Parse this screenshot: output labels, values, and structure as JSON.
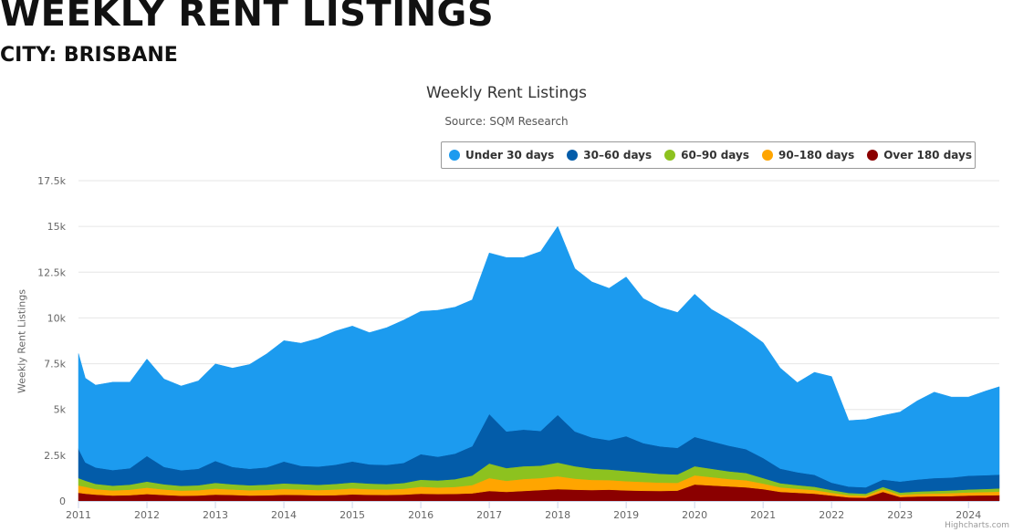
{
  "page": {
    "title": "WEEKLY RENT LISTINGS",
    "subtitle": "CITY: BRISBANE"
  },
  "credits": "Highcharts.com",
  "chart_data": {
    "type": "area",
    "stacked": true,
    "title": "Weekly Rent Listings",
    "subtitle": "Source: SQM Research",
    "ylabel": "Weekly Rent Listings",
    "xlabel": "",
    "xlim": [
      2011.0,
      2024.45
    ],
    "ylim": [
      0,
      17500
    ],
    "x_ticks": [
      "2011",
      "2012",
      "2013",
      "2014",
      "2015",
      "2016",
      "2017",
      "2018",
      "2019",
      "2020",
      "2021",
      "2022",
      "2023",
      "2024"
    ],
    "y_ticks": [
      "0",
      "2.5k",
      "5k",
      "7.5k",
      "10k",
      "12.5k",
      "15k",
      "17.5k"
    ],
    "grid": "horizontal",
    "legend_position": "top-right",
    "x": [
      2011.0,
      2011.1,
      2011.25,
      2011.5,
      2011.75,
      2012.0,
      2012.25,
      2012.5,
      2012.75,
      2013.0,
      2013.25,
      2013.5,
      2013.75,
      2014.0,
      2014.25,
      2014.5,
      2014.75,
      2015.0,
      2015.25,
      2015.5,
      2015.75,
      2016.0,
      2016.25,
      2016.5,
      2016.75,
      2017.0,
      2017.25,
      2017.5,
      2017.75,
      2018.0,
      2018.25,
      2018.5,
      2018.75,
      2019.0,
      2019.25,
      2019.5,
      2019.75,
      2020.0,
      2020.25,
      2020.5,
      2020.75,
      2021.0,
      2021.25,
      2021.5,
      2021.75,
      2022.0,
      2022.25,
      2022.5,
      2022.75,
      2023.0,
      2023.25,
      2023.5,
      2023.75,
      2024.0,
      2024.25,
      2024.45
    ],
    "series": [
      {
        "name": "Over 180 days",
        "color": "#8B0000",
        "values": [
          450,
          400,
          350,
          300,
          320,
          380,
          330,
          290,
          300,
          350,
          330,
          300,
          310,
          340,
          330,
          310,
          320,
          360,
          340,
          330,
          350,
          400,
          380,
          390,
          420,
          550,
          500,
          550,
          600,
          650,
          620,
          600,
          620,
          580,
          560,
          550,
          570,
          900,
          850,
          800,
          750,
          650,
          500,
          450,
          400,
          300,
          200,
          180,
          500,
          220,
          250,
          260,
          270,
          300,
          310,
          320
        ]
      },
      {
        "name": "90–180 days",
        "color": "#FFA500",
        "values": [
          400,
          380,
          300,
          280,
          300,
          350,
          300,
          280,
          290,
          330,
          300,
          290,
          300,
          320,
          300,
          290,
          310,
          330,
          310,
          300,
          320,
          380,
          360,
          380,
          450,
          700,
          600,
          650,
          650,
          700,
          600,
          550,
          520,
          500,
          480,
          450,
          420,
          500,
          450,
          400,
          380,
          300,
          250,
          220,
          200,
          150,
          120,
          110,
          150,
          120,
          140,
          150,
          160,
          170,
          180,
          190
        ]
      },
      {
        "name": "60–90 days",
        "color": "#8DC21F",
        "values": [
          400,
          330,
          280,
          260,
          270,
          330,
          280,
          260,
          270,
          310,
          280,
          270,
          280,
          300,
          290,
          280,
          300,
          320,
          300,
          290,
          310,
          380,
          380,
          420,
          520,
          800,
          700,
          700,
          680,
          750,
          680,
          620,
          580,
          560,
          520,
          480,
          460,
          500,
          460,
          420,
          400,
          300,
          220,
          200,
          180,
          150,
          120,
          110,
          120,
          120,
          130,
          140,
          150,
          160,
          170,
          180
        ]
      },
      {
        "name": "30–60 days",
        "color": "#035CA9",
        "values": [
          1600,
          1000,
          900,
          850,
          900,
          1400,
          950,
          850,
          900,
          1200,
          950,
          900,
          950,
          1200,
          1000,
          1000,
          1050,
          1150,
          1050,
          1050,
          1100,
          1400,
          1300,
          1400,
          1600,
          2700,
          2000,
          2000,
          1900,
          2600,
          1900,
          1700,
          1600,
          1900,
          1600,
          1500,
          1450,
          1600,
          1500,
          1400,
          1300,
          1100,
          800,
          700,
          650,
          400,
          350,
          350,
          400,
          600,
          650,
          700,
          700,
          750,
          750,
          750
        ]
      },
      {
        "name": "Under 30 days",
        "color": "#1C9BEF",
        "values": [
          5200,
          4600,
          4500,
          4800,
          4700,
          5300,
          4800,
          4600,
          4800,
          5300,
          5400,
          5700,
          6200,
          6600,
          6700,
          7000,
          7300,
          7400,
          7200,
          7500,
          7800,
          7800,
          8000,
          8000,
          8000,
          8800,
          9500,
          9400,
          9800,
          10300,
          8900,
          8500,
          8300,
          8700,
          7900,
          7600,
          7400,
          7800,
          7200,
          6900,
          6500,
          6300,
          5500,
          4900,
          5600,
          5800,
          3600,
          3700,
          3500,
          3800,
          4300,
          4700,
          4400,
          4300,
          4600,
          4800
        ]
      }
    ]
  }
}
